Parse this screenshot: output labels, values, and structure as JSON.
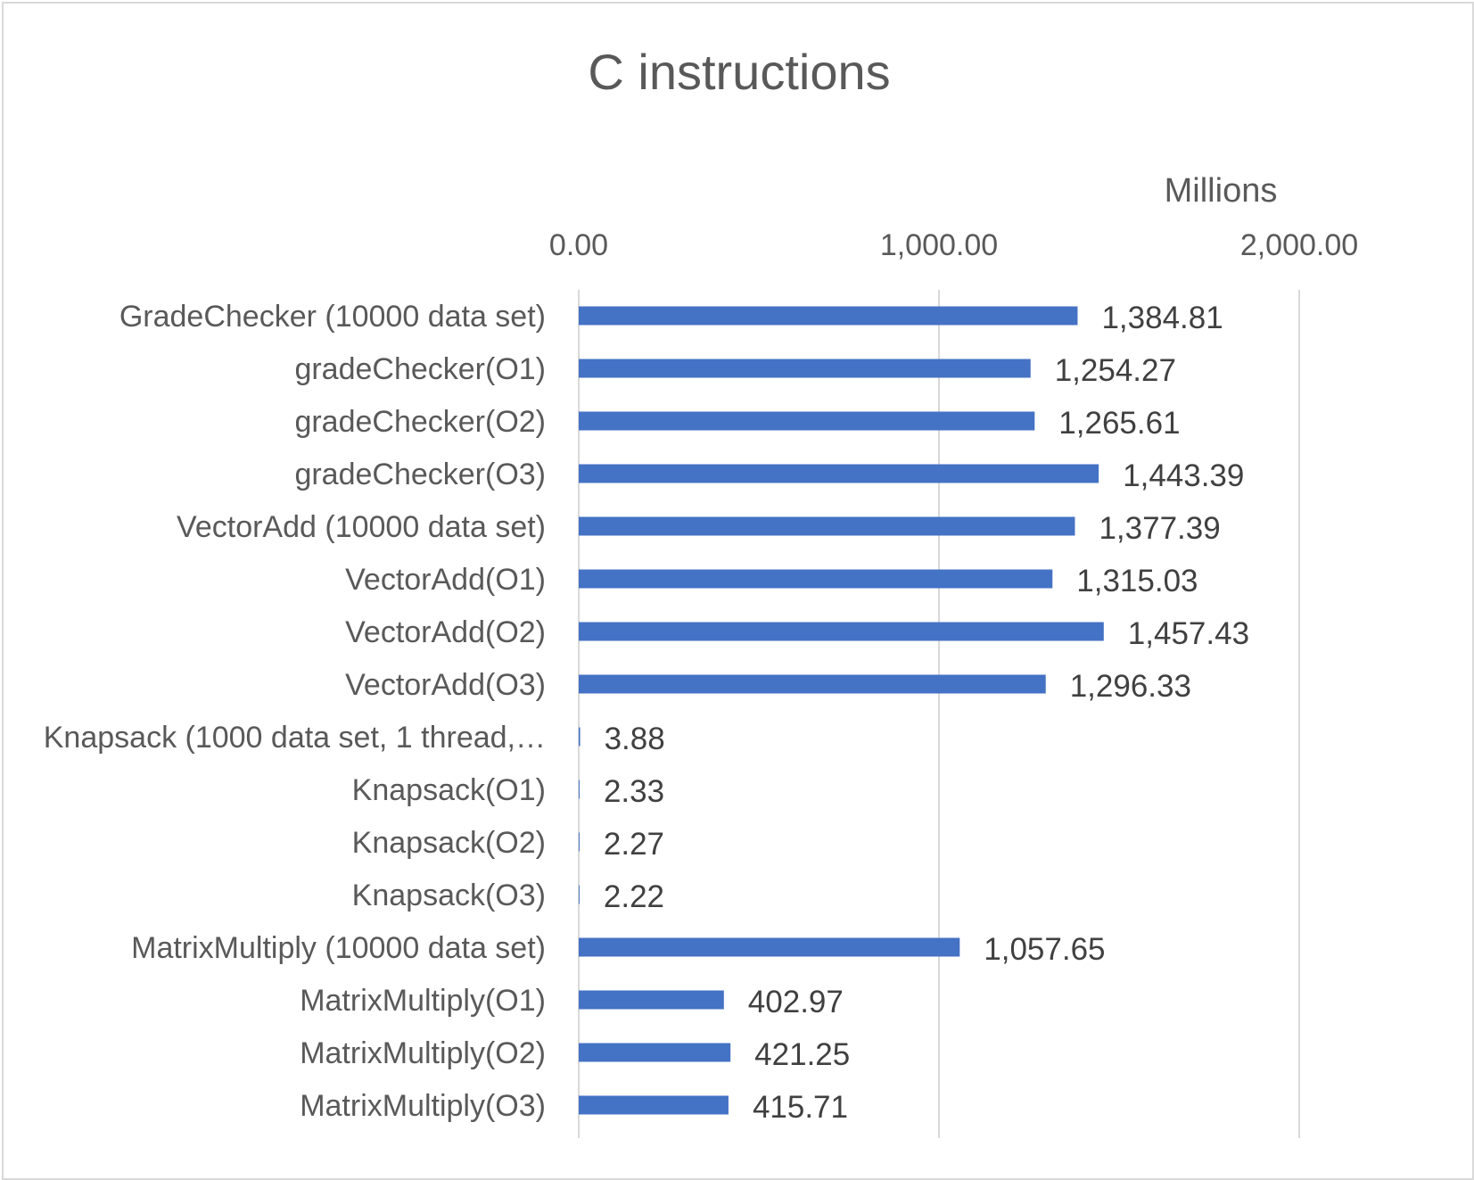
{
  "chart_data": {
    "type": "bar",
    "orientation": "horizontal",
    "title": "C instructions",
    "unit_label": "Millions",
    "xaxis_position": "top",
    "xlim": [
      0,
      2000
    ],
    "xticks": [
      0,
      1000,
      2000
    ],
    "xtick_labels": [
      "0.00",
      "1,000.00",
      "2,000.00"
    ],
    "grid": true,
    "legend": "none",
    "bar_color": "#4472C4",
    "categories": [
      "GradeChecker (10000 data set)",
      "gradeChecker(O1)",
      "gradeChecker(O2)",
      "gradeChecker(O3)",
      "VectorAdd (10000 data set)",
      "VectorAdd(O1)",
      "VectorAdd(O2)",
      "VectorAdd(O3)",
      "Knapsack (1000 data set, 1 thread,…",
      "Knapsack(O1)",
      "Knapsack(O2)",
      "Knapsack(O3)",
      "MatrixMultiply (10000 data set)",
      "MatrixMultiply(O1)",
      "MatrixMultiply(O2)",
      "MatrixMultiply(O3)"
    ],
    "values": [
      1384.81,
      1254.27,
      1265.61,
      1443.39,
      1377.39,
      1315.03,
      1457.43,
      1296.33,
      3.88,
      2.33,
      2.27,
      2.22,
      1057.65,
      402.97,
      421.25,
      415.71
    ],
    "data_labels": [
      "1,384.81",
      "1,254.27",
      "1,265.61",
      "1,443.39",
      "1,377.39",
      "1,315.03",
      "1,457.43",
      "1,296.33",
      "3.88",
      "2.33",
      "2.27",
      "2.22",
      "1,057.65",
      "402.97",
      "421.25",
      "415.71"
    ]
  }
}
